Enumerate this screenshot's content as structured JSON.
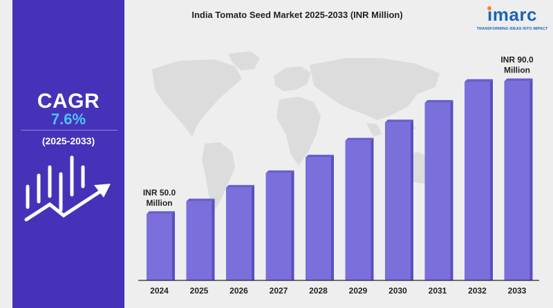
{
  "chart_data": {
    "type": "bar",
    "title": "India Tomato Seed Market 2025-2033 (INR Million)",
    "categories": [
      "2024",
      "2025",
      "2026",
      "2027",
      "2028",
      "2029",
      "2030",
      "2031",
      "2032",
      "2033"
    ],
    "values": [
      50.0,
      53.8,
      57.9,
      62.3,
      67.0,
      72.1,
      77.6,
      83.5,
      89.8,
      90.0
    ],
    "annotations": [
      {
        "category": "2024",
        "lines": [
          "INR 50.0",
          "Million"
        ]
      },
      {
        "category": "2033",
        "lines": [
          "INR 90.0",
          "Million"
        ]
      }
    ],
    "ylim": [
      30,
      92
    ],
    "grid": false,
    "colors": {
      "bar": "#7b6fdc",
      "bar_edge": "#5a4fc0",
      "bar_shade": "#6a5ed0",
      "axis": "#222222"
    }
  },
  "cagr": {
    "title": "CAGR",
    "value": "7.6%",
    "period": "(2025-2033)"
  },
  "brand": {
    "name": "imarc",
    "tagline": "TRANSFORMING IDEAS INTO IMPACT",
    "color": "#1a64b8",
    "accent": "#f28a1a"
  },
  "theme": {
    "panel": "#4433b8",
    "background": "#eeeeee",
    "map": "#dcdcdc"
  },
  "icons": [
    "growth-bars-arrow-icon",
    "world-map-graphic"
  ]
}
